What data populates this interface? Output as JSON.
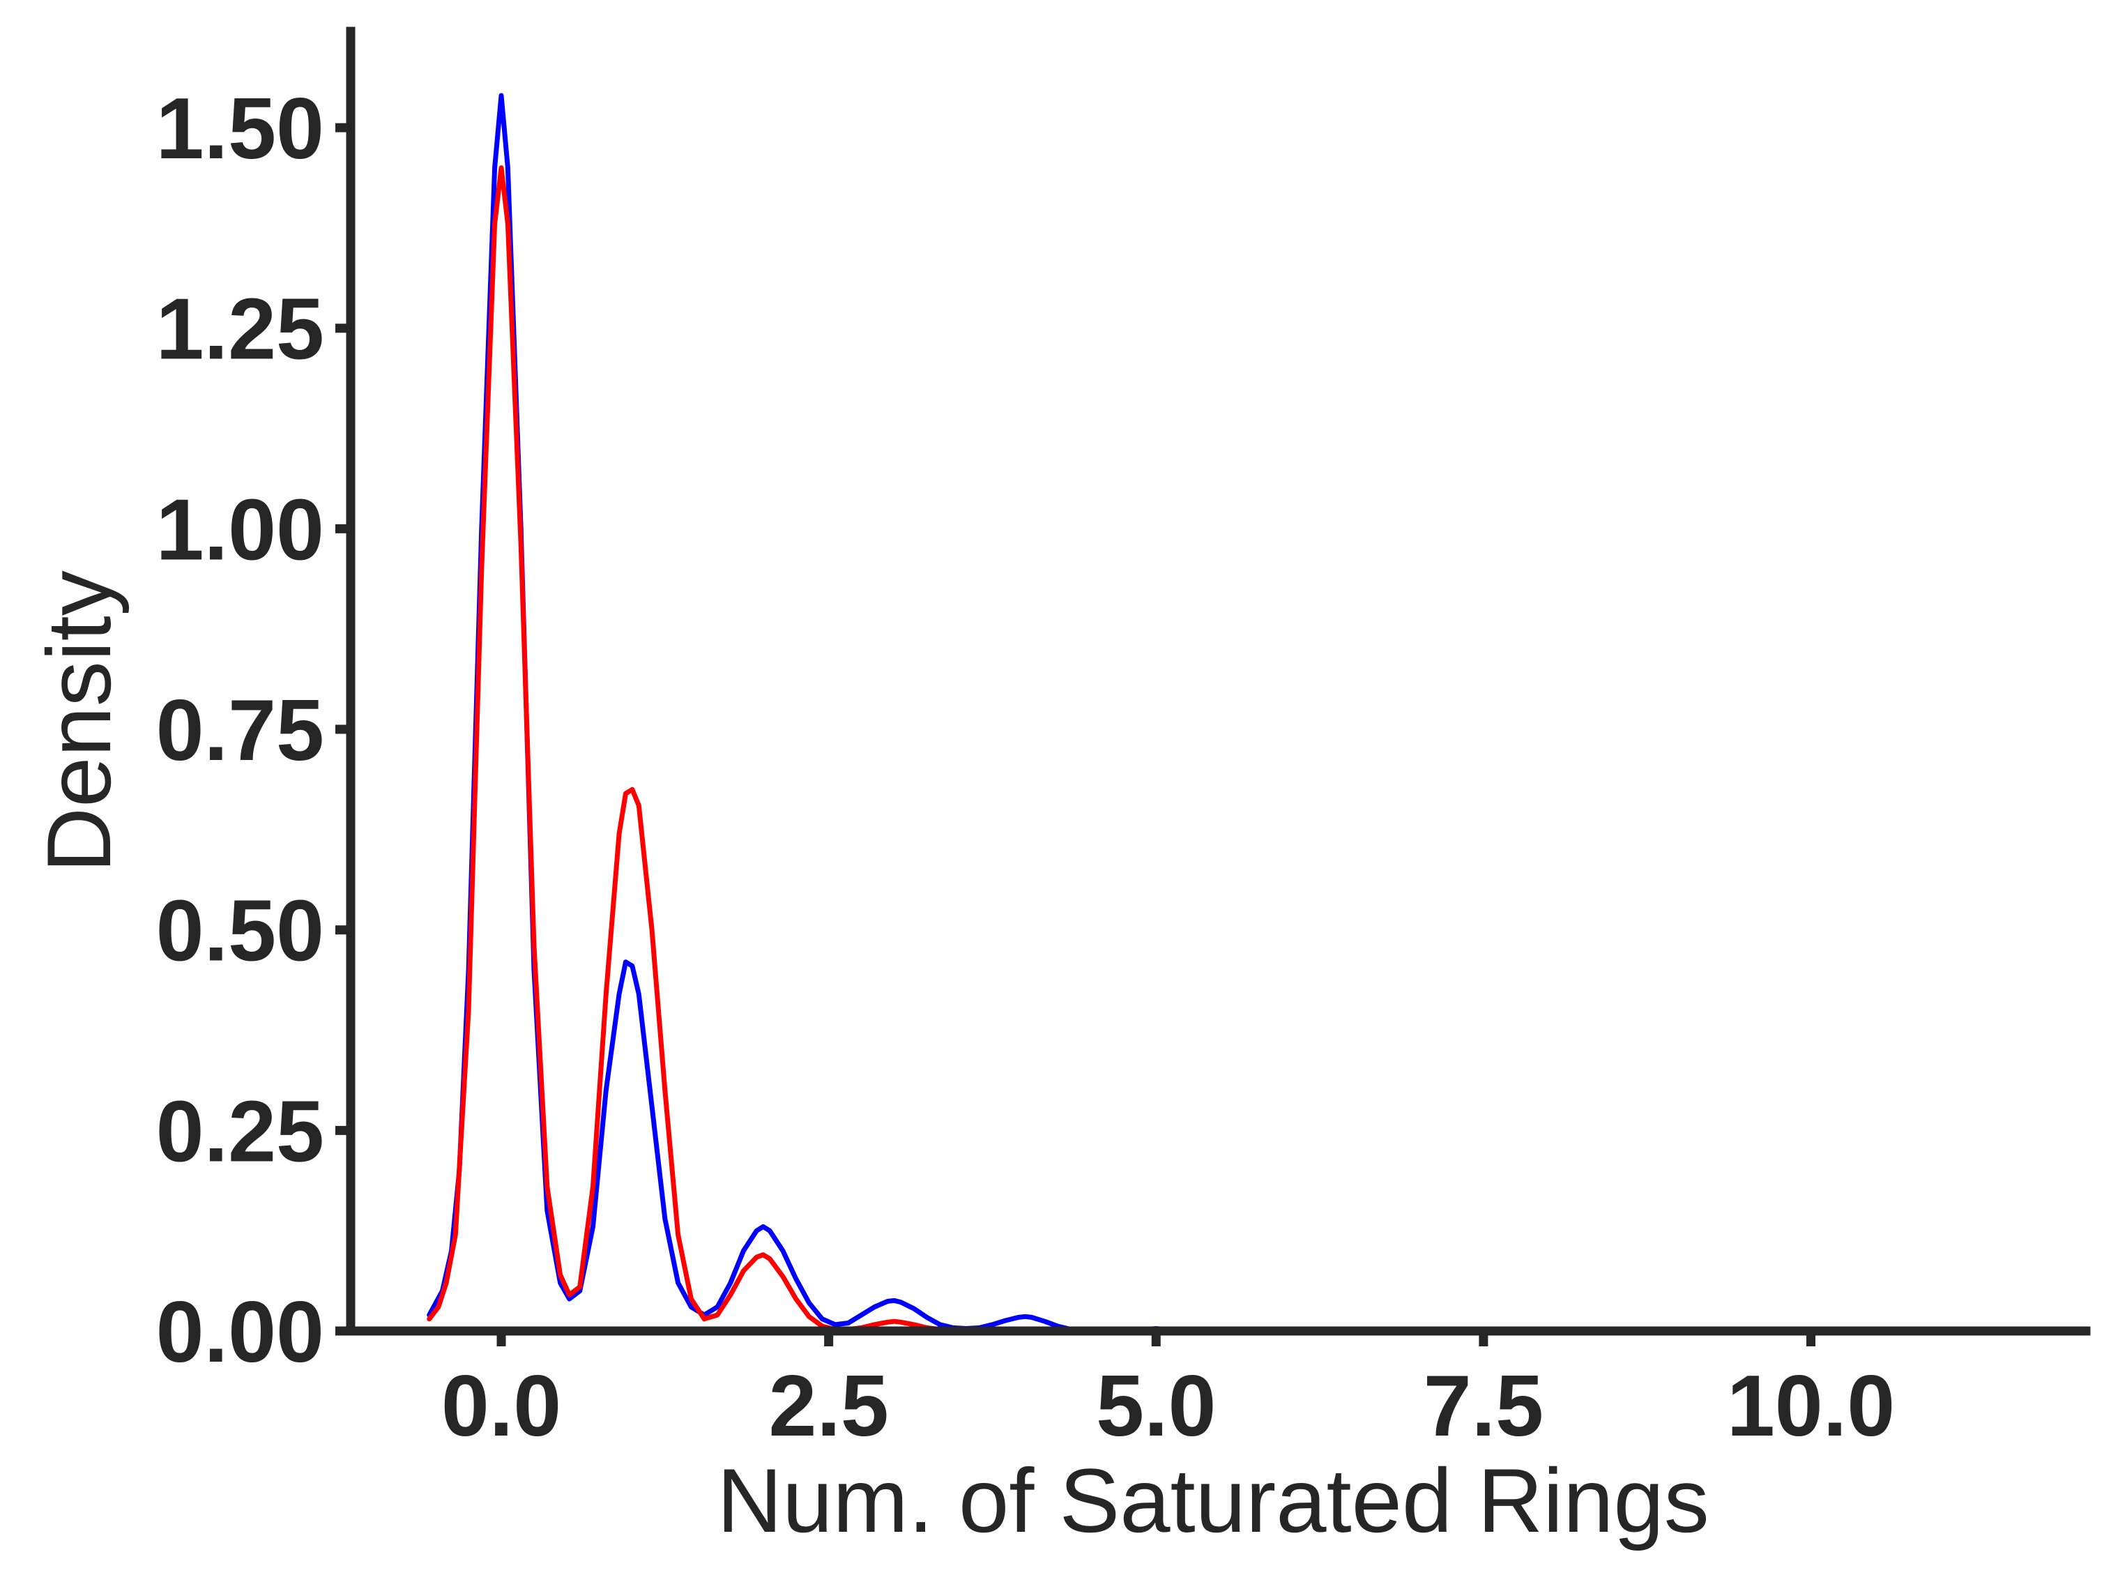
{
  "chart_data": {
    "type": "line",
    "xlabel": "Num. of Saturated Rings",
    "ylabel": "Density",
    "xlim": [
      -1.15,
      12.1
    ],
    "ylim": [
      0,
      1.62
    ],
    "x_ticks": [
      0.0,
      2.5,
      5.0,
      7.5,
      10.0
    ],
    "x_tick_labels": [
      "0.0",
      "2.5",
      "5.0",
      "7.5",
      "10.0"
    ],
    "y_ticks": [
      0.0,
      0.25,
      0.5,
      0.75,
      1.0,
      1.25,
      1.5
    ],
    "y_tick_labels": [
      "0.00",
      "0.25",
      "0.50",
      "0.75",
      "1.00",
      "1.25",
      "1.50"
    ],
    "grid": false,
    "legend": "none",
    "series": [
      {
        "color": "#0000ff",
        "x": [
          -0.55,
          -0.45,
          -0.38,
          -0.32,
          -0.25,
          -0.15,
          -0.05,
          0.0,
          0.05,
          0.15,
          0.25,
          0.35,
          0.45,
          0.52,
          0.6,
          0.7,
          0.8,
          0.9,
          0.95,
          1.0,
          1.05,
          1.15,
          1.25,
          1.35,
          1.45,
          1.55,
          1.65,
          1.75,
          1.85,
          1.95,
          2.0,
          2.05,
          2.15,
          2.25,
          2.35,
          2.45,
          2.55,
          2.65,
          2.75,
          2.85,
          2.95,
          3.0,
          3.05,
          3.15,
          3.25,
          3.35,
          3.45,
          3.55,
          3.65,
          3.75,
          3.85,
          3.95,
          4.0,
          4.05,
          4.15,
          4.25,
          4.35,
          4.45,
          4.6,
          4.8,
          5.0,
          5.2
        ],
        "y": [
          0.02,
          0.05,
          0.1,
          0.2,
          0.45,
          1.0,
          1.45,
          1.54,
          1.45,
          1.0,
          0.45,
          0.15,
          0.06,
          0.04,
          0.05,
          0.13,
          0.3,
          0.42,
          0.46,
          0.455,
          0.42,
          0.28,
          0.14,
          0.06,
          0.03,
          0.02,
          0.03,
          0.06,
          0.1,
          0.125,
          0.13,
          0.125,
          0.1,
          0.065,
          0.035,
          0.015,
          0.008,
          0.01,
          0.02,
          0.03,
          0.037,
          0.038,
          0.036,
          0.028,
          0.017,
          0.008,
          0.004,
          0.003,
          0.004,
          0.008,
          0.013,
          0.017,
          0.018,
          0.017,
          0.012,
          0.006,
          0.002,
          0.001,
          0.0,
          0.0,
          0.003,
          0.0
        ]
      },
      {
        "color": "#ff0000",
        "x": [
          -0.55,
          -0.48,
          -0.42,
          -0.35,
          -0.25,
          -0.15,
          -0.05,
          0.0,
          0.05,
          0.15,
          0.25,
          0.35,
          0.45,
          0.52,
          0.6,
          0.7,
          0.8,
          0.9,
          0.95,
          1.0,
          1.05,
          1.15,
          1.25,
          1.35,
          1.45,
          1.55,
          1.65,
          1.75,
          1.85,
          1.95,
          2.0,
          2.05,
          2.15,
          2.25,
          2.35,
          2.45,
          2.55,
          2.65,
          2.75,
          2.85,
          2.95,
          3.0,
          3.05,
          3.15,
          3.25,
          3.35,
          3.45,
          3.6,
          3.8,
          4.0,
          4.2
        ],
        "y": [
          0.015,
          0.03,
          0.06,
          0.12,
          0.4,
          0.95,
          1.38,
          1.45,
          1.38,
          0.98,
          0.48,
          0.18,
          0.07,
          0.045,
          0.055,
          0.18,
          0.42,
          0.62,
          0.67,
          0.675,
          0.655,
          0.5,
          0.3,
          0.12,
          0.04,
          0.015,
          0.02,
          0.045,
          0.075,
          0.092,
          0.095,
          0.09,
          0.068,
          0.04,
          0.018,
          0.006,
          0.002,
          0.002,
          0.004,
          0.008,
          0.011,
          0.012,
          0.011,
          0.008,
          0.004,
          0.002,
          0.001,
          0.0,
          0.0,
          0.0,
          0.0
        ]
      }
    ]
  }
}
